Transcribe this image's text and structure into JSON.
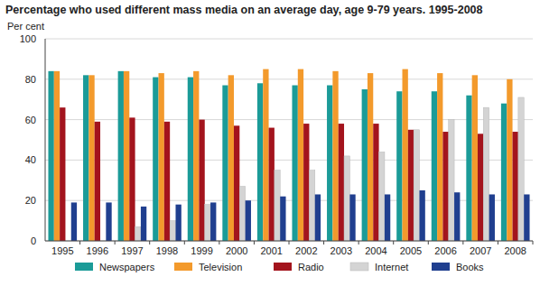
{
  "chart_data": {
    "type": "bar",
    "title": "Percentage who used different mass media on an average day, age 9-79 years. 1995-2008",
    "y_label": "Per cent",
    "categories": [
      "1995",
      "1996",
      "1997",
      "1998",
      "1999",
      "2000",
      "2001",
      "2002",
      "2003",
      "2004",
      "2005",
      "2006",
      "2007",
      "2008"
    ],
    "series": [
      {
        "name": "Newspapers",
        "color": "#1b9b98",
        "values": [
          84,
          82,
          84,
          81,
          81,
          77,
          78,
          77,
          77,
          75,
          74,
          74,
          72,
          68
        ]
      },
      {
        "name": "Television",
        "color": "#f39a2c",
        "values": [
          84,
          82,
          84,
          83,
          84,
          82,
          85,
          85,
          84,
          83,
          85,
          83,
          82,
          80
        ]
      },
      {
        "name": "Radio",
        "color": "#a3141d",
        "values": [
          66,
          59,
          61,
          59,
          60,
          57,
          56,
          58,
          58,
          58,
          55,
          54,
          53,
          54
        ]
      },
      {
        "name": "Internet",
        "color": "#d4d4d4",
        "values": [
          null,
          null,
          7,
          10,
          18,
          27,
          35,
          35,
          42,
          44,
          55,
          60,
          66,
          71
        ]
      },
      {
        "name": "Books",
        "color": "#203f8f",
        "values": [
          19,
          19,
          17,
          18,
          19,
          20,
          22,
          23,
          23,
          23,
          25,
          24,
          23,
          23
        ]
      }
    ],
    "ylim": [
      0,
      100
    ],
    "yticks": [
      0,
      20,
      40,
      60,
      80,
      100
    ],
    "grid": true,
    "legend": "bottom"
  }
}
